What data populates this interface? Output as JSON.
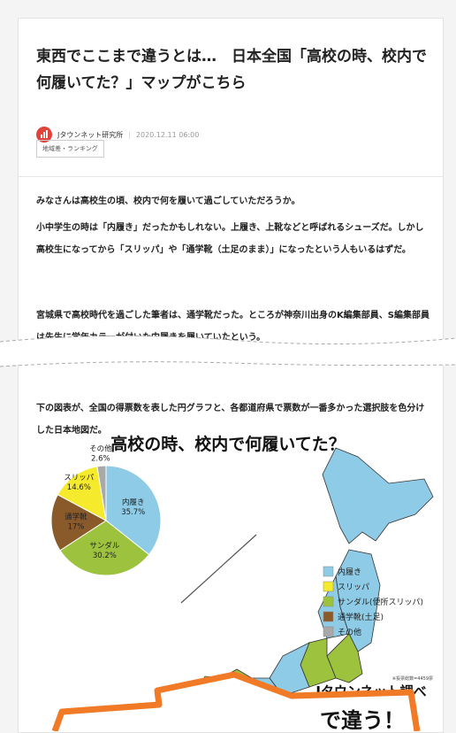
{
  "article": {
    "title": "東西でここまで違うとは…　日本全国「高校の時、校内で何履いてた？」マップがこちら",
    "source": "Jタウンネット研究所",
    "date": "2020.12.11 06:00",
    "tag": "地域差・ランキング",
    "paragraphs": [
      "みなさんは高校生の頃、校内で何を履いて過ごしていただろうか。",
      "小中学生の時は「内履き」だったかもしれない。上履き、上靴などと呼ばれるシューズだ。しかし高校生になってから「スリッパ」や「通学靴（土足のまま）」になったという人もいるはずだ。",
      "宮城県で高校時代を過ごした筆者は、通学靴だった。ところが神奈川出身のK編集部員、S編集部員は先生に学年カラーが付いた内履きを履いていたという。",
      "下の図表が、全国の得票数を表した円グラフと、各都道府県で票数が一番多かった選択肢を色分けした日本地図だ。"
    ]
  },
  "chart_data": {
    "type": "pie",
    "title": "高校の時、校内で何履いてた？",
    "categories": [
      "内履き",
      "サンダル",
      "通学靴",
      "スリッパ",
      "その他"
    ],
    "values": [
      35.7,
      30.2,
      17,
      14.6,
      2.6
    ],
    "value_labels": [
      "35.7%",
      "30.2%",
      "17%",
      "14.6%",
      "2.6%"
    ],
    "colors": [
      "#8ecbe6",
      "#9cc23e",
      "#8b5a2b",
      "#f6ea2c",
      "#a9a9a9"
    ],
    "legend": [
      {
        "name": "内履き",
        "color": "#8ecbe6"
      },
      {
        "name": "スリッパ",
        "color": "#f6ea2c"
      },
      {
        "name": "サンダル(便所スリッパ)",
        "color": "#9cc23e"
      },
      {
        "name": "通学靴(土足)",
        "color": "#8b5a2b"
      },
      {
        "name": "その他",
        "color": "#a9a9a9"
      }
    ]
  },
  "map": {
    "note": "※投票総数=4459票",
    "credit": "Jタウンネット調べ"
  },
  "callout": "で違う！"
}
